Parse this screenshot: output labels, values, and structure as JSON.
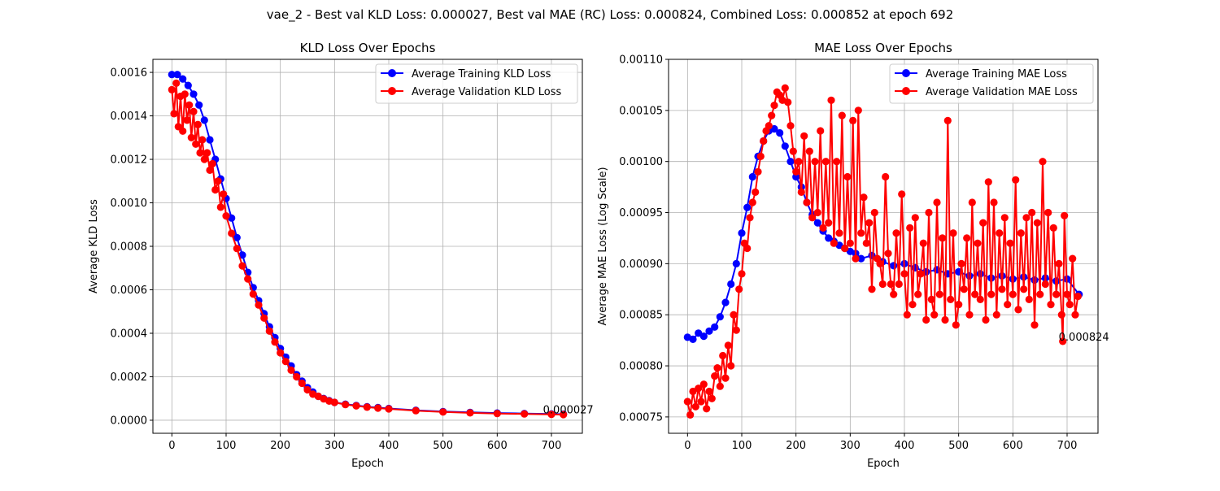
{
  "figure": {
    "suptitle": "vae_2 - Best val KLD Loss: 0.000027, Best val MAE (RC) Loss: 0.000824, Combined Loss: 0.000852 at epoch 692"
  },
  "colors": {
    "training": "#0000ff",
    "validation": "#ff0000",
    "grid": "#b0b0b0"
  },
  "chart_data": [
    {
      "type": "line",
      "title": "KLD Loss Over Epochs",
      "xlabel": "Epoch",
      "ylabel": "Average KLD Loss",
      "xlim": [
        -35,
        757
      ],
      "ylim": [
        -6e-05,
        0.00166
      ],
      "xticks": [
        0,
        100,
        200,
        300,
        400,
        500,
        600,
        700
      ],
      "yticks": [
        0.0,
        0.0002,
        0.0004,
        0.0006,
        0.0008,
        0.001,
        0.0012,
        0.0014,
        0.0016
      ],
      "ytick_labels": [
        "0.0000",
        "0.0002",
        "0.0004",
        "0.0006",
        "0.0008",
        "0.0010",
        "0.0012",
        "0.0014",
        "0.0016"
      ],
      "grid": true,
      "legend_position": "top-right",
      "annotation": {
        "text": "0.000027",
        "x": 692,
        "y": 2.7e-05
      },
      "series": [
        {
          "name": "Average Training KLD Loss",
          "x": [
            0,
            10,
            20,
            30,
            40,
            50,
            60,
            70,
            80,
            90,
            100,
            110,
            120,
            130,
            140,
            150,
            160,
            170,
            180,
            190,
            200,
            210,
            220,
            230,
            240,
            250,
            260,
            270,
            280,
            290,
            300,
            320,
            340,
            360,
            380,
            400,
            450,
            500,
            550,
            600,
            650,
            700,
            722
          ],
          "y": [
            0.00159,
            0.00159,
            0.00157,
            0.00154,
            0.0015,
            0.00145,
            0.00138,
            0.00129,
            0.0012,
            0.00111,
            0.00102,
            0.00093,
            0.00084,
            0.00076,
            0.00068,
            0.00061,
            0.00055,
            0.00049,
            0.00043,
            0.00038,
            0.00033,
            0.00029,
            0.00025,
            0.00021,
            0.00018,
            0.00015,
            0.00013,
            0.00011,
            0.0001,
            9e-05,
            8.2e-05,
            7.4e-05,
            6.8e-05,
            6.2e-05,
            5.8e-05,
            5.4e-05,
            4.6e-05,
            4e-05,
            3.6e-05,
            3.3e-05,
            3.1e-05,
            2.9e-05,
            2.8e-05
          ]
        },
        {
          "name": "Average Validation KLD Loss",
          "x": [
            0,
            4,
            8,
            12,
            16,
            20,
            24,
            28,
            32,
            36,
            40,
            44,
            48,
            52,
            56,
            60,
            65,
            70,
            75,
            80,
            85,
            90,
            95,
            100,
            110,
            120,
            130,
            140,
            150,
            160,
            170,
            180,
            190,
            200,
            210,
            220,
            230,
            240,
            250,
            260,
            270,
            280,
            290,
            300,
            320,
            340,
            360,
            380,
            400,
            450,
            500,
            550,
            600,
            650,
            700,
            722
          ],
          "y": [
            0.00152,
            0.00141,
            0.00155,
            0.00135,
            0.00149,
            0.00133,
            0.0015,
            0.00138,
            0.00145,
            0.0013,
            0.00142,
            0.00127,
            0.00136,
            0.00123,
            0.00129,
            0.0012,
            0.00123,
            0.00115,
            0.00118,
            0.00106,
            0.0011,
            0.00098,
            0.00104,
            0.00094,
            0.00086,
            0.00079,
            0.00071,
            0.00065,
            0.00058,
            0.00053,
            0.00047,
            0.00041,
            0.00036,
            0.00031,
            0.00027,
            0.00023,
            0.0002,
            0.00017,
            0.00014,
            0.00012,
            0.00011,
            9.8e-05,
            8.8e-05,
            8.2e-05,
            7.2e-05,
            6.6e-05,
            6e-05,
            5.6e-05,
            5.2e-05,
            4.4e-05,
            3.8e-05,
            3.4e-05,
            3.1e-05,
            2.9e-05,
            2.7e-05,
            2.6e-05
          ]
        }
      ]
    },
    {
      "type": "line",
      "title": "MAE Loss Over Epochs",
      "xlabel": "Epoch",
      "ylabel": "Average MAE Loss (Log Scale)",
      "xlim": [
        -35,
        757
      ],
      "ylim": [
        0.000734,
        0.0011
      ],
      "xticks": [
        0,
        100,
        200,
        300,
        400,
        500,
        600,
        700
      ],
      "yticks": [
        0.00075,
        0.0008,
        0.00085,
        0.0009,
        0.00095,
        0.001,
        0.00105,
        0.0011
      ],
      "ytick_labels": [
        "0.00075",
        "0.00080",
        "0.00085",
        "0.00090",
        "0.00095",
        "0.00100",
        "0.00105",
        "0.00110"
      ],
      "grid": true,
      "legend_position": "top-right",
      "annotation": {
        "text": "0.000824",
        "x": 692,
        "y": 0.000824
      },
      "series": [
        {
          "name": "Average Training MAE Loss",
          "x": [
            0,
            10,
            20,
            30,
            40,
            50,
            60,
            70,
            80,
            90,
            100,
            110,
            120,
            130,
            140,
            150,
            160,
            170,
            180,
            190,
            200,
            210,
            220,
            230,
            240,
            250,
            260,
            270,
            280,
            290,
            300,
            310,
            320,
            340,
            360,
            380,
            400,
            420,
            440,
            460,
            480,
            500,
            520,
            540,
            560,
            580,
            600,
            620,
            640,
            660,
            680,
            700,
            722
          ],
          "y": [
            0.000828,
            0.000826,
            0.000832,
            0.000829,
            0.000834,
            0.000838,
            0.000848,
            0.000862,
            0.00088,
            0.0009,
            0.00093,
            0.000955,
            0.000985,
            0.001005,
            0.00102,
            0.00103,
            0.001032,
            0.001028,
            0.001015,
            0.001,
            0.000985,
            0.000975,
            0.00096,
            0.000948,
            0.00094,
            0.000932,
            0.000925,
            0.000922,
            0.000918,
            0.000915,
            0.000912,
            0.00091,
            0.000905,
            0.000908,
            0.000902,
            0.000898,
            0.0009,
            0.000896,
            0.000892,
            0.000894,
            0.00089,
            0.000892,
            0.000888,
            0.00089,
            0.000886,
            0.000888,
            0.000885,
            0.000887,
            0.000884,
            0.000886,
            0.000883,
            0.000885,
            0.00087
          ]
        },
        {
          "name": "Average Validation MAE Loss",
          "x": [
            0,
            5,
            10,
            15,
            20,
            25,
            30,
            35,
            40,
            45,
            50,
            55,
            60,
            65,
            70,
            75,
            80,
            85,
            90,
            95,
            100,
            105,
            110,
            115,
            120,
            125,
            130,
            135,
            140,
            145,
            150,
            155,
            160,
            165,
            170,
            175,
            180,
            185,
            190,
            195,
            200,
            205,
            210,
            215,
            220,
            225,
            230,
            235,
            240,
            245,
            250,
            255,
            260,
            265,
            270,
            275,
            280,
            285,
            290,
            295,
            300,
            305,
            310,
            315,
            320,
            325,
            330,
            335,
            340,
            345,
            350,
            355,
            360,
            365,
            370,
            375,
            380,
            385,
            390,
            395,
            400,
            405,
            410,
            415,
            420,
            425,
            430,
            435,
            440,
            445,
            450,
            455,
            460,
            465,
            470,
            475,
            480,
            485,
            490,
            495,
            500,
            505,
            510,
            515,
            520,
            525,
            530,
            535,
            540,
            545,
            550,
            555,
            560,
            565,
            570,
            575,
            580,
            585,
            590,
            595,
            600,
            605,
            610,
            615,
            620,
            625,
            630,
            635,
            640,
            645,
            650,
            655,
            660,
            665,
            670,
            675,
            680,
            685,
            690,
            692,
            695,
            700,
            705,
            710,
            715,
            720
          ],
          "y": [
            0.000765,
            0.000752,
            0.000775,
            0.00076,
            0.000778,
            0.000765,
            0.000782,
            0.000758,
            0.000775,
            0.000768,
            0.00079,
            0.000798,
            0.00078,
            0.00081,
            0.000788,
            0.00082,
            0.0008,
            0.00085,
            0.000835,
            0.000875,
            0.00089,
            0.00092,
            0.000915,
            0.000945,
            0.00096,
            0.00097,
            0.00099,
            0.001005,
            0.00102,
            0.00103,
            0.001035,
            0.001045,
            0.001055,
            0.001068,
            0.001065,
            0.00106,
            0.001072,
            0.001058,
            0.001035,
            0.00101,
            0.00099,
            0.001,
            0.00097,
            0.001025,
            0.00096,
            0.00101,
            0.000945,
            0.001,
            0.00095,
            0.00103,
            0.000935,
            0.001,
            0.00094,
            0.00106,
            0.00092,
            0.001,
            0.00093,
            0.001045,
            0.000915,
            0.000985,
            0.00092,
            0.00104,
            0.000905,
            0.00105,
            0.00093,
            0.000965,
            0.00092,
            0.00094,
            0.000875,
            0.00095,
            0.000905,
            0.0009,
            0.00088,
            0.000985,
            0.00091,
            0.00088,
            0.00087,
            0.00093,
            0.00088,
            0.000968,
            0.00089,
            0.00085,
            0.000935,
            0.00086,
            0.000945,
            0.00087,
            0.00089,
            0.00092,
            0.000845,
            0.00095,
            0.000865,
            0.00085,
            0.00096,
            0.00087,
            0.000925,
            0.000845,
            0.00104,
            0.000865,
            0.00093,
            0.00084,
            0.00086,
            0.0009,
            0.000875,
            0.000925,
            0.00085,
            0.00096,
            0.00087,
            0.00092,
            0.000865,
            0.00094,
            0.000845,
            0.00098,
            0.00087,
            0.00096,
            0.00085,
            0.00093,
            0.000875,
            0.000945,
            0.00086,
            0.00092,
            0.00087,
            0.000982,
            0.000855,
            0.00093,
            0.000875,
            0.000945,
            0.000865,
            0.00095,
            0.00084,
            0.00094,
            0.00087,
            0.001,
            0.00088,
            0.00095,
            0.00086,
            0.000935,
            0.00087,
            0.0009,
            0.00085,
            0.000824,
            0.000947,
            0.00087,
            0.00086,
            0.000905,
            0.00085,
            0.000868
          ]
        }
      ]
    }
  ]
}
